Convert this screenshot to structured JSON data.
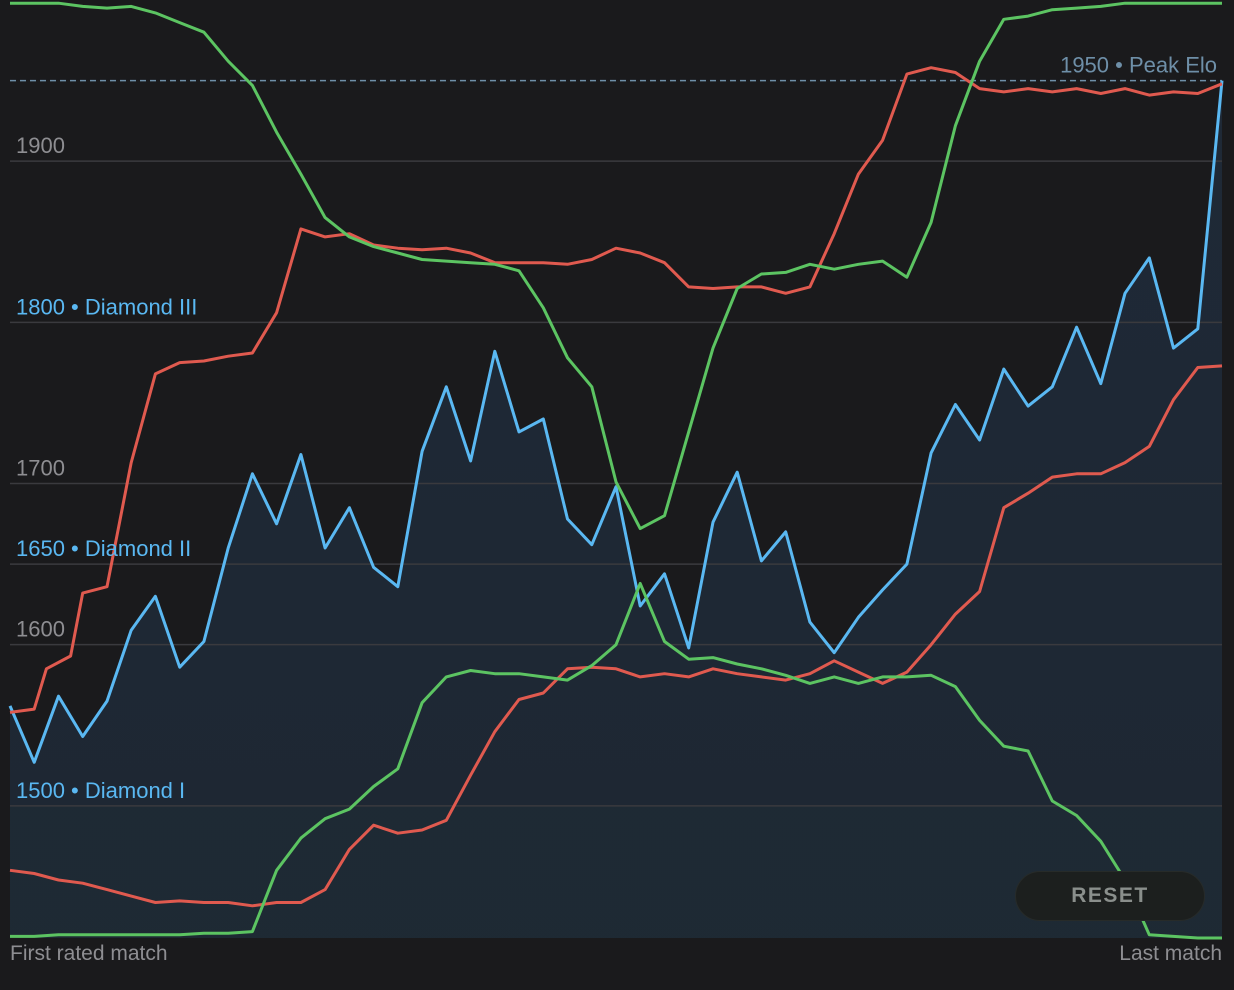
{
  "chart_data": {
    "type": "line",
    "ylim": [
      1418,
      2000
    ],
    "grid": true,
    "x_start_label": "First rated match",
    "x_end_label": "Last match",
    "y_ticks": [
      {
        "value": 1900,
        "label": "1900",
        "style": "plain"
      },
      {
        "value": 1800,
        "label": "1800 • Diamond III",
        "style": "rank"
      },
      {
        "value": 1700,
        "label": "1700",
        "style": "plain"
      },
      {
        "value": 1650,
        "label": "1650 • Diamond II",
        "style": "rank"
      },
      {
        "value": 1600,
        "label": "1600",
        "style": "plain"
      },
      {
        "value": 1500,
        "label": "1500 • Diamond I",
        "style": "rank"
      }
    ],
    "peak": {
      "value": 1950,
      "label": "1950 • Peak Elo"
    },
    "colors": {
      "elo": "#5ab8f2",
      "red": "#e05a4f",
      "green": "#5cc462",
      "peak": "#6e8fa8",
      "grid": "#3a3a3e",
      "rank_text": "#5ab8f2",
      "plain_text": "#8e8e92"
    },
    "series": [
      {
        "id": "elo",
        "color": "#5ab8f2",
        "x": [
          0,
          2,
          4,
          6,
          8,
          10,
          12,
          14,
          16,
          18,
          20,
          22,
          24,
          26,
          28,
          30,
          32,
          34,
          36,
          38,
          40,
          42,
          44,
          46,
          48,
          50,
          52,
          54,
          56,
          58,
          60,
          62,
          64,
          66,
          68,
          70,
          72,
          74,
          76,
          78,
          80,
          82,
          84,
          86,
          88,
          90,
          92,
          94,
          96,
          98,
          100
        ],
        "y": [
          1562,
          1527,
          1568,
          1543,
          1565,
          1609,
          1630,
          1586,
          1602,
          1660,
          1706,
          1675,
          1718,
          1660,
          1685,
          1648,
          1636,
          1720,
          1760,
          1714,
          1782,
          1732,
          1740,
          1678,
          1662,
          1698,
          1624,
          1644,
          1598,
          1676,
          1707,
          1652,
          1670,
          1614,
          1595,
          1617,
          1634,
          1650,
          1719,
          1749,
          1727,
          1771,
          1748,
          1760,
          1797,
          1762,
          1818,
          1840,
          1784,
          1796,
          1950
        ]
      },
      {
        "id": "red-upper",
        "color": "#e05a4f",
        "x": [
          0,
          2,
          3,
          5,
          6,
          8,
          10,
          12,
          14,
          16,
          18,
          20,
          22,
          24,
          26,
          28,
          30,
          32,
          34,
          36,
          38,
          40,
          42,
          44,
          46,
          48,
          50,
          52,
          54,
          56,
          58,
          60,
          62,
          64,
          66,
          68,
          70,
          72,
          74,
          76,
          78,
          80,
          82,
          84,
          86,
          88,
          90,
          92,
          94,
          96,
          98,
          100
        ],
        "y": [
          1558,
          1560,
          1585,
          1593,
          1632,
          1636,
          1713,
          1768,
          1775,
          1776,
          1779,
          1781,
          1806,
          1858,
          1853,
          1855,
          1848,
          1846,
          1845,
          1846,
          1843,
          1837,
          1837,
          1837,
          1836,
          1839,
          1846,
          1843,
          1837,
          1822,
          1821,
          1822,
          1822,
          1818,
          1822,
          1855,
          1892,
          1913,
          1954,
          1958,
          1955,
          1945,
          1943,
          1945,
          1943,
          1945,
          1942,
          1945,
          1941,
          1943,
          1942,
          1948
        ]
      },
      {
        "id": "red-lower",
        "color": "#e05a4f",
        "x": [
          0,
          2,
          4,
          6,
          8,
          10,
          12,
          14,
          16,
          18,
          20,
          22,
          24,
          26,
          28,
          30,
          32,
          34,
          36,
          38,
          40,
          42,
          44,
          46,
          48,
          50,
          52,
          54,
          56,
          58,
          60,
          62,
          64,
          66,
          68,
          70,
          72,
          74,
          76,
          78,
          80,
          82,
          84,
          86,
          88,
          90,
          92,
          94,
          96,
          98,
          100
        ],
        "y": [
          1460,
          1458,
          1454,
          1452,
          1448,
          1444,
          1440,
          1441,
          1440,
          1440,
          1438,
          1440,
          1440,
          1448,
          1473,
          1488,
          1483,
          1485,
          1491,
          1519,
          1546,
          1566,
          1570,
          1585,
          1586,
          1585,
          1580,
          1582,
          1580,
          1585,
          1582,
          1580,
          1578,
          1582,
          1590,
          1583,
          1576,
          1583,
          1600,
          1619,
          1633,
          1685,
          1694,
          1704,
          1706,
          1706,
          1713,
          1723,
          1752,
          1772,
          1773
        ]
      },
      {
        "id": "green-upper",
        "color": "#5cc462",
        "x": [
          0,
          2,
          4,
          6,
          8,
          10,
          12,
          14,
          16,
          18,
          20,
          22,
          24,
          26,
          28,
          30,
          32,
          34,
          36,
          38,
          40,
          42,
          44,
          46,
          48,
          50,
          52,
          54,
          56,
          58,
          60,
          62,
          64,
          66,
          68,
          70,
          72,
          74,
          76,
          78,
          80,
          82,
          84,
          86,
          88,
          90,
          92,
          94,
          96,
          98,
          100
        ],
        "y": [
          1998,
          1998,
          1998,
          1996,
          1995,
          1996,
          1992,
          1986,
          1980,
          1962,
          1947,
          1918,
          1892,
          1865,
          1853,
          1847,
          1843,
          1839,
          1838,
          1837,
          1836,
          1832,
          1809,
          1778,
          1760,
          1701,
          1672,
          1680,
          1732,
          1784,
          1821,
          1830,
          1831,
          1836,
          1833,
          1836,
          1838,
          1828,
          1862,
          1922,
          1962,
          1988,
          1990,
          1994,
          1995,
          1996,
          1998,
          1998,
          1998,
          1998,
          1998
        ]
      },
      {
        "id": "green-lower",
        "color": "#5cc462",
        "x": [
          0,
          2,
          4,
          6,
          8,
          10,
          12,
          14,
          16,
          18,
          20,
          22,
          24,
          26,
          28,
          30,
          32,
          34,
          36,
          38,
          40,
          42,
          44,
          46,
          48,
          50,
          52,
          54,
          56,
          58,
          60,
          62,
          64,
          66,
          68,
          70,
          72,
          74,
          76,
          78,
          80,
          82,
          84,
          86,
          88,
          90,
          92,
          94,
          96,
          98,
          100
        ],
        "y": [
          1419,
          1419,
          1420,
          1420,
          1420,
          1420,
          1420,
          1420,
          1421,
          1421,
          1422,
          1460,
          1480,
          1492,
          1498,
          1512,
          1523,
          1564,
          1580,
          1584,
          1582,
          1582,
          1580,
          1578,
          1587,
          1600,
          1638,
          1602,
          1591,
          1592,
          1588,
          1585,
          1581,
          1576,
          1580,
          1576,
          1580,
          1580,
          1581,
          1574,
          1553,
          1537,
          1534,
          1503,
          1494,
          1478,
          1454,
          1420,
          1419,
          1418,
          1418
        ]
      }
    ]
  },
  "controls": {
    "reset_label": "RESET"
  }
}
